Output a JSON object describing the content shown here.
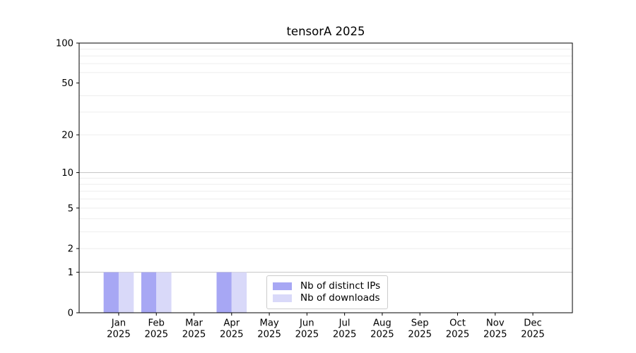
{
  "chart_data": {
    "type": "bar",
    "title": "tensorA 2025",
    "categories": [
      "Jan 2025",
      "Feb 2025",
      "Mar 2025",
      "Apr 2025",
      "May 2025",
      "Jun 2025",
      "Jul 2025",
      "Aug 2025",
      "Sep 2025",
      "Oct 2025",
      "Nov 2025",
      "Dec 2025"
    ],
    "series": [
      {
        "name": "Nb of distinct IPs",
        "color": "#a7a7f4",
        "values": [
          1,
          1,
          0,
          1,
          0,
          0,
          0,
          0,
          0,
          0,
          0,
          0
        ]
      },
      {
        "name": "Nb of downloads",
        "color": "#d9d9f9",
        "values": [
          1,
          1,
          0,
          1,
          0,
          0,
          0,
          0,
          0,
          0,
          0,
          0
        ]
      }
    ],
    "xlabel": "",
    "ylabel": "",
    "yscale": "log1p",
    "ylim": [
      0,
      100
    ],
    "yticks": [
      0,
      1,
      2,
      5,
      10,
      20,
      50,
      100
    ],
    "major_grid_values": [
      1,
      10,
      100
    ],
    "minor_grid_values": [
      2,
      3,
      4,
      5,
      6,
      7,
      8,
      9,
      20,
      30,
      40,
      60,
      70,
      80,
      90
    ],
    "grid": true,
    "legend_position": "lower center inside axes",
    "colors": {
      "spine": "#000000",
      "tick_label": "#000000",
      "grid_major": "#c6c6c6",
      "grid_minor": "#ededed",
      "legend_border": "#cccccc"
    }
  }
}
